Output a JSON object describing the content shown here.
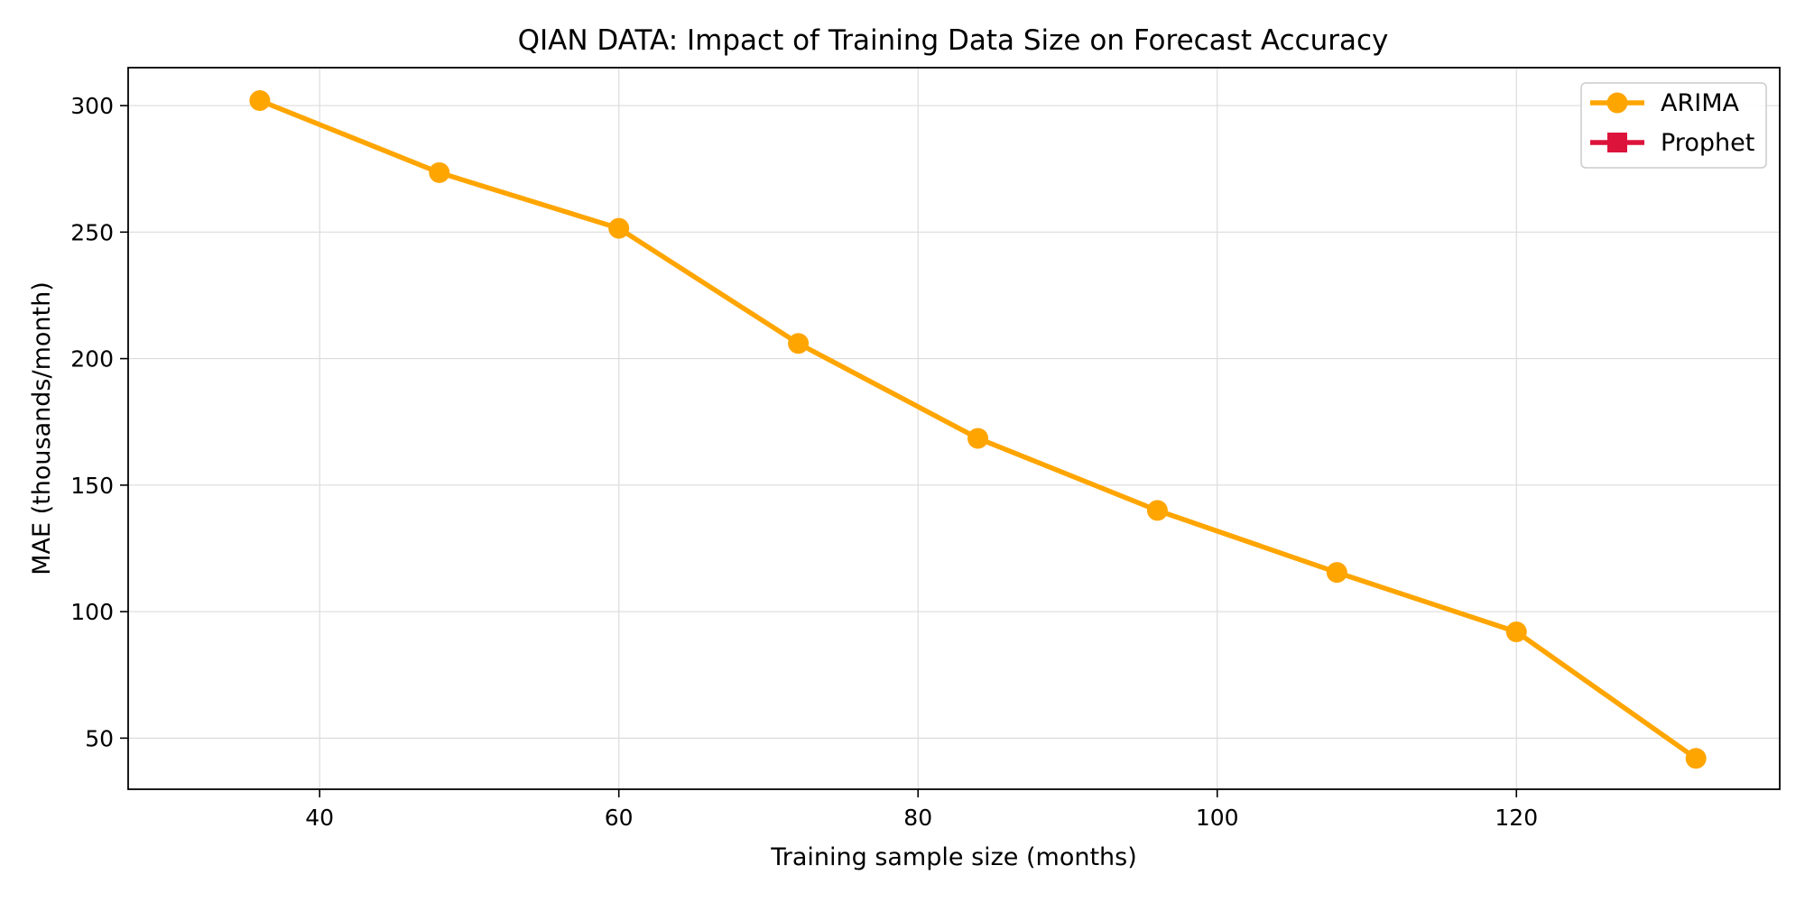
{
  "chart_data": {
    "type": "line",
    "title": "QIAN DATA: Impact of Training Data Size on Forecast Accuracy",
    "xlabel": "Training sample size (months)",
    "ylabel": "MAE (thousands/month)",
    "xlim": [
      27.2,
      137.6
    ],
    "ylim": [
      29.8,
      315.0
    ],
    "xticks": [
      40,
      60,
      80,
      100,
      120
    ],
    "yticks": [
      50,
      100,
      150,
      200,
      250,
      300
    ],
    "grid": true,
    "legend_position": "top-right",
    "series": [
      {
        "name": "ARIMA",
        "color": "#FFA500",
        "marker": "circle",
        "x": [
          36,
          48,
          60,
          72,
          84,
          96,
          108,
          120,
          132
        ],
        "y": [
          302,
          273.5,
          251.5,
          206,
          168.5,
          140,
          115.5,
          92,
          42
        ]
      },
      {
        "name": "Prophet",
        "color": "#DC143C",
        "marker": "square",
        "x": [],
        "y": []
      }
    ]
  }
}
